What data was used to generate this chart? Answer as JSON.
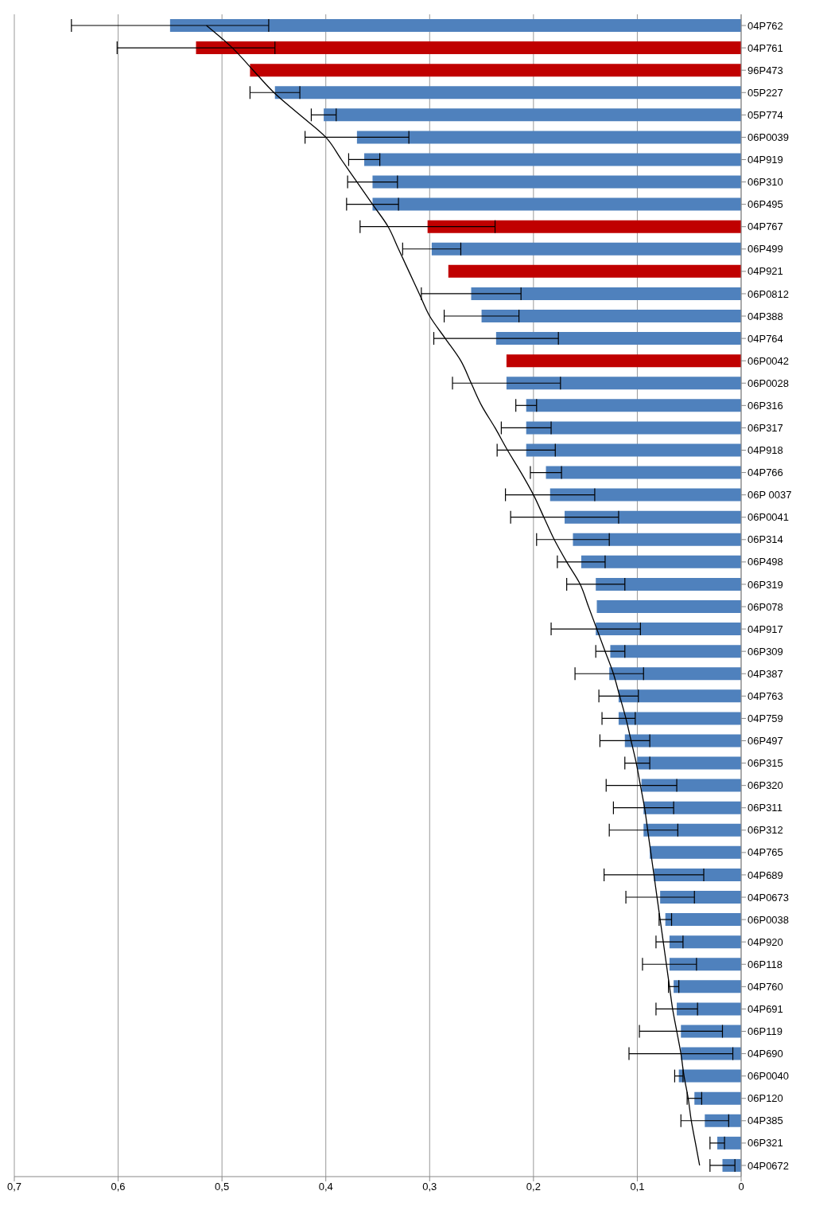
{
  "chart_data": {
    "type": "bar",
    "orientation": "horizontal",
    "categories": [
      "04P762",
      "04P761",
      "96P473",
      "05P227",
      "05P774",
      "06P0039",
      "04P919",
      "06P310",
      "06P495",
      "04P767",
      "06P499",
      "04P921",
      "06P0812",
      "04P388",
      "04P764",
      "06P0042",
      "06P0028",
      "06P316",
      "06P317",
      "04P918",
      "04P766",
      "06P 0037",
      "06P0041",
      "06P314",
      "06P498",
      "06P319",
      "06P078",
      "04P917",
      "06P309",
      "04P387",
      "04P763",
      "04P759",
      "06P497",
      "06P315",
      "06P320",
      "06P311",
      "06P312",
      "04P765",
      "04P689",
      "04P0673",
      "06P0038",
      "04P920",
      "06P118",
      "04P760",
      "04P691",
      "06P119",
      "04P690",
      "06P0040",
      "06P120",
      "04P385",
      "06P321",
      "04P0672"
    ],
    "series": [
      {
        "color": "#4f81bd",
        "colors": [
          "#4f81bd",
          "#c00000",
          "#c00000",
          "#4f81bd",
          "#4f81bd",
          "#4f81bd",
          "#4f81bd",
          "#4f81bd",
          "#4f81bd",
          "#c00000",
          "#4f81bd",
          "#c00000",
          "#4f81bd",
          "#4f81bd",
          "#4f81bd",
          "#c00000",
          "#4f81bd",
          "#4f81bd",
          "#4f81bd",
          "#4f81bd",
          "#4f81bd",
          "#4f81bd",
          "#4f81bd",
          "#4f81bd",
          "#4f81bd",
          "#4f81bd",
          "#4f81bd",
          "#4f81bd",
          "#4f81bd",
          "#4f81bd",
          "#4f81bd",
          "#4f81bd",
          "#4f81bd",
          "#4f81bd",
          "#4f81bd",
          "#4f81bd",
          "#4f81bd",
          "#4f81bd",
          "#4f81bd",
          "#4f81bd",
          "#4f81bd",
          "#4f81bd",
          "#4f81bd",
          "#4f81bd",
          "#4f81bd",
          "#4f81bd",
          "#4f81bd",
          "#4f81bd",
          "#4f81bd",
          "#4f81bd",
          "#4f81bd",
          "#4f81bd"
        ],
        "values": [
          0.55,
          0.525,
          0.473,
          0.449,
          0.402,
          0.37,
          0.363,
          0.355,
          0.355,
          0.302,
          0.298,
          0.282,
          0.26,
          0.25,
          0.236,
          0.226,
          0.226,
          0.207,
          0.207,
          0.207,
          0.188,
          0.184,
          0.17,
          0.162,
          0.154,
          0.14,
          0.139,
          0.14,
          0.126,
          0.127,
          0.118,
          0.118,
          0.112,
          0.1,
          0.096,
          0.094,
          0.094,
          0.088,
          0.084,
          0.078,
          0.073,
          0.069,
          0.069,
          0.065,
          0.062,
          0.058,
          0.058,
          0.06,
          0.045,
          0.035,
          0.023,
          0.018
        ],
        "errors": [
          0.095,
          0.076,
          null,
          0.024,
          0.012,
          0.05,
          0.015,
          0.024,
          0.025,
          0.065,
          0.028,
          null,
          0.048,
          0.036,
          0.06,
          null,
          0.052,
          0.01,
          0.024,
          0.028,
          0.015,
          0.043,
          0.052,
          0.035,
          0.023,
          0.028,
          null,
          0.043,
          0.014,
          0.033,
          0.019,
          0.016,
          0.024,
          0.012,
          0.034,
          0.029,
          0.033,
          null,
          0.048,
          0.033,
          0.006,
          0.013,
          0.026,
          0.005,
          0.02,
          0.04,
          0.05,
          0.004,
          0.007,
          0.023,
          0.007,
          0.012
        ]
      },
      {
        "type": "line",
        "color": "#000000",
        "values": [
          0.515,
          0.49,
          0.47,
          0.45,
          0.425,
          0.4,
          0.385,
          0.37,
          0.355,
          0.34,
          0.33,
          0.32,
          0.31,
          0.3,
          0.285,
          0.27,
          0.26,
          0.25,
          0.237,
          0.225,
          0.212,
          0.2,
          0.19,
          0.18,
          0.168,
          0.155,
          0.147,
          0.139,
          0.131,
          0.123,
          0.117,
          0.111,
          0.106,
          0.101,
          0.097,
          0.093,
          0.09,
          0.087,
          0.084,
          0.081,
          0.078,
          0.075,
          0.072,
          0.069,
          0.066,
          0.062,
          0.058,
          0.055,
          0.051,
          0.048,
          0.044,
          0.04
        ]
      }
    ],
    "xlim": [
      0.7,
      0
    ],
    "xticks": [
      {
        "value": 0.7,
        "label": "0,7"
      },
      {
        "value": 0.6,
        "label": "0,6"
      },
      {
        "value": 0.5,
        "label": "0,5"
      },
      {
        "value": 0.4,
        "label": "0,4"
      },
      {
        "value": 0.3,
        "label": "0,3"
      },
      {
        "value": 0.2,
        "label": "0,2"
      },
      {
        "value": 0.1,
        "label": "0,1"
      },
      {
        "value": 0,
        "label": "0"
      }
    ],
    "grid": "x",
    "marker": "none"
  }
}
